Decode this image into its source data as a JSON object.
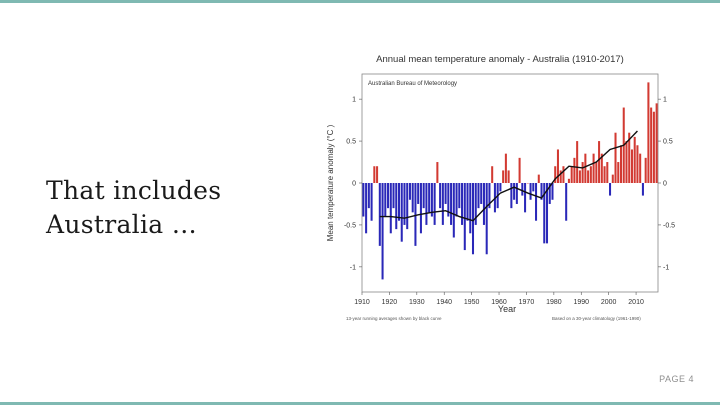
{
  "slide": {
    "title_line1": "That includes",
    "title_line2": "Australia …",
    "page_label": "PAGE 4"
  },
  "colors": {
    "accent_bar": "#7fb9b2",
    "positive": "#d23a32",
    "negative": "#2a28b8",
    "curve": "#111111"
  },
  "chart_data": {
    "type": "bar",
    "title": "Annual mean temperature anomaly - Australia (1910-2017)",
    "source": "Australian Bureau of Meteorology",
    "xlabel": "Year",
    "ylabel": "Mean temperature anomaly (°C )",
    "footnote_left": "13-year running averages shown by black curve",
    "footnote_right": "Based on a 30-year climatology (1961-1990)",
    "xlim": [
      1910,
      2017
    ],
    "ylim": [
      -1.3,
      1.3
    ],
    "xticks": [
      1910,
      1920,
      1930,
      1940,
      1950,
      1960,
      1970,
      1980,
      1990,
      2000,
      2010
    ],
    "yticks_left": [
      1,
      0.5,
      0,
      -0.5,
      -1
    ],
    "yticks_right": [
      1,
      0.5,
      0,
      -0.5,
      -1
    ],
    "years": [
      1910,
      1911,
      1912,
      1913,
      1914,
      1915,
      1916,
      1917,
      1918,
      1919,
      1920,
      1921,
      1922,
      1923,
      1924,
      1925,
      1926,
      1927,
      1928,
      1929,
      1930,
      1931,
      1932,
      1933,
      1934,
      1935,
      1936,
      1937,
      1938,
      1939,
      1940,
      1941,
      1942,
      1943,
      1944,
      1945,
      1946,
      1947,
      1948,
      1949,
      1950,
      1951,
      1952,
      1953,
      1954,
      1955,
      1956,
      1957,
      1958,
      1959,
      1960,
      1961,
      1962,
      1963,
      1964,
      1965,
      1966,
      1967,
      1968,
      1969,
      1970,
      1971,
      1972,
      1973,
      1974,
      1975,
      1976,
      1977,
      1978,
      1979,
      1980,
      1981,
      1982,
      1983,
      1984,
      1985,
      1986,
      1987,
      1988,
      1989,
      1990,
      1991,
      1992,
      1993,
      1994,
      1995,
      1996,
      1997,
      1998,
      1999,
      2000,
      2001,
      2002,
      2003,
      2004,
      2005,
      2006,
      2007,
      2008,
      2009,
      2010,
      2011,
      2012,
      2013,
      2014,
      2015,
      2016,
      2017
    ],
    "values": [
      -0.4,
      -0.6,
      -0.3,
      -0.45,
      0.2,
      0.2,
      -0.75,
      -1.15,
      -0.4,
      -0.3,
      -0.6,
      -0.3,
      -0.55,
      -0.45,
      -0.7,
      -0.5,
      -0.55,
      -0.2,
      -0.35,
      -0.75,
      -0.25,
      -0.6,
      -0.3,
      -0.5,
      -0.35,
      -0.4,
      -0.5,
      0.25,
      -0.3,
      -0.5,
      -0.25,
      -0.4,
      -0.5,
      -0.65,
      -0.4,
      -0.3,
      -0.5,
      -0.8,
      -0.45,
      -0.6,
      -0.85,
      -0.5,
      -0.3,
      -0.25,
      -0.5,
      -0.85,
      -0.3,
      0.2,
      -0.35,
      -0.3,
      -0.1,
      0.15,
      0.35,
      0.15,
      -0.3,
      -0.2,
      -0.25,
      0.3,
      -0.15,
      -0.35,
      0.0,
      -0.2,
      -0.1,
      -0.45,
      0.1,
      -0.2,
      -0.72,
      -0.72,
      -0.25,
      -0.2,
      0.2,
      0.4,
      0.15,
      0.2,
      -0.45,
      0.05,
      0.2,
      0.3,
      0.5,
      0.15,
      0.25,
      0.35,
      0.15,
      0.2,
      0.35,
      0.25,
      0.5,
      0.35,
      0.2,
      0.25,
      -0.15,
      0.1,
      0.6,
      0.25,
      0.45,
      0.9,
      0.5,
      0.6,
      0.4,
      0.55,
      0.45,
      0.35,
      -0.15,
      0.3,
      1.2,
      0.9,
      0.85,
      0.95
    ],
    "running_mean": {
      "years": [
        1916,
        1920,
        1925,
        1930,
        1935,
        1940,
        1945,
        1950,
        1955,
        1960,
        1965,
        1970,
        1975,
        1980,
        1985,
        1990,
        1995,
        2000,
        2005,
        2010
      ],
      "values": [
        -0.4,
        -0.4,
        -0.42,
        -0.38,
        -0.35,
        -0.33,
        -0.4,
        -0.45,
        -0.28,
        -0.12,
        -0.05,
        -0.12,
        -0.18,
        0.05,
        0.2,
        0.18,
        0.25,
        0.4,
        0.45,
        0.62
      ]
    },
    "grid": false
  }
}
